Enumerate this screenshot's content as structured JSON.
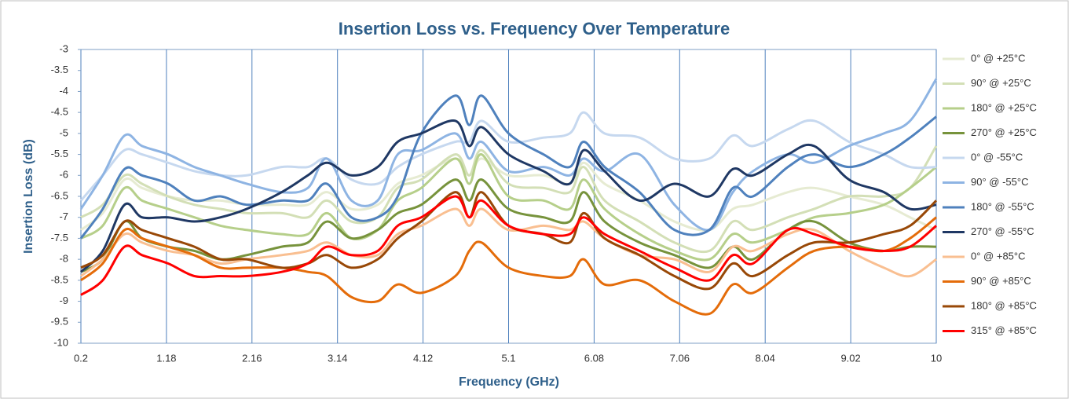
{
  "chart_data": {
    "type": "line",
    "title": "Insertion Loss vs. Frequency Over Temperature",
    "x_label": "Frequency (GHz)",
    "y_label": "Insertion Loss (dB)",
    "x": [
      0.2,
      0.45,
      0.7,
      0.9,
      1.2,
      1.5,
      1.8,
      2.1,
      2.5,
      2.8,
      3.02,
      3.3,
      3.6,
      3.83,
      4.1,
      4.49,
      4.65,
      4.79,
      5.1,
      5.5,
      5.8,
      5.96,
      6.2,
      6.6,
      7.0,
      7.4,
      7.67,
      7.9,
      8.3,
      8.6,
      9.0,
      9.4,
      9.7,
      10
    ],
    "xlim": [
      0.2,
      10
    ],
    "xticks": [
      0.2,
      1.18,
      2.16,
      3.14,
      4.12,
      5.1,
      6.08,
      7.06,
      8.04,
      9.02,
      10
    ],
    "ylim": [
      -10,
      -3
    ],
    "yticks": [
      -3,
      -3.5,
      -4,
      -4.5,
      -5,
      -5.5,
      -6,
      -6.5,
      -7,
      -7.5,
      -8,
      -8.5,
      -9,
      -9.5,
      -10
    ],
    "grid": "x",
    "legend": "right",
    "series": [
      {
        "name": "0° @ +25°C",
        "color": "#e6ebd2",
        "values": [
          -7.3,
          -6.9,
          -6.1,
          -6.3,
          -6.5,
          -6.6,
          -6.6,
          -6.7,
          -6.7,
          -6.7,
          -6.4,
          -6.8,
          -6.7,
          -6.2,
          -6.0,
          -5.6,
          -6.0,
          -5.6,
          -6.0,
          -6.0,
          -6.2,
          -5.7,
          -6.2,
          -6.6,
          -7.1,
          -7.3,
          -6.8,
          -6.7,
          -6.4,
          -6.3,
          -6.5,
          -6.7,
          -7.0,
          -7.3
        ]
      },
      {
        "name": "90° @ +25°C",
        "color": "#d3dfb6",
        "values": [
          -7.0,
          -6.7,
          -6.0,
          -6.2,
          -6.5,
          -6.7,
          -6.8,
          -6.9,
          -6.9,
          -7.0,
          -6.6,
          -7.1,
          -7.0,
          -6.3,
          -6.1,
          -5.5,
          -6.0,
          -5.4,
          -6.2,
          -6.3,
          -6.4,
          -5.8,
          -6.6,
          -7.1,
          -7.6,
          -7.8,
          -7.1,
          -7.3,
          -7.0,
          -6.8,
          -6.5,
          -6.5,
          -6.3,
          -5.3
        ]
      },
      {
        "name": "180° @ +25°C",
        "color": "#b6cf8a",
        "values": [
          -7.5,
          -7.2,
          -6.3,
          -6.6,
          -6.8,
          -7.0,
          -7.2,
          -7.3,
          -7.4,
          -7.4,
          -6.9,
          -7.5,
          -7.3,
          -6.6,
          -6.3,
          -5.6,
          -6.2,
          -5.5,
          -6.5,
          -6.6,
          -6.8,
          -6.1,
          -6.8,
          -7.4,
          -7.8,
          -8.0,
          -7.4,
          -7.6,
          -7.3,
          -7.0,
          -6.9,
          -6.7,
          -6.3,
          -5.8
        ]
      },
      {
        "name": "270° @ +25°C",
        "color": "#77933c",
        "values": [
          -8.3,
          -8.0,
          -7.1,
          -7.5,
          -7.7,
          -7.8,
          -8.0,
          -7.9,
          -7.7,
          -7.6,
          -7.1,
          -7.5,
          -7.3,
          -6.9,
          -6.7,
          -6.1,
          -6.6,
          -6.1,
          -6.8,
          -7.0,
          -7.1,
          -6.4,
          -7.1,
          -7.6,
          -7.9,
          -8.2,
          -7.7,
          -8.0,
          -7.3,
          -7.1,
          -7.6,
          -7.8,
          -7.7,
          -7.7
        ]
      },
      {
        "name": "0° @  -55°C",
        "color": "#c6d8ef",
        "values": [
          -6.6,
          -6.0,
          -5.4,
          -5.5,
          -5.7,
          -5.9,
          -6.0,
          -6.0,
          -5.8,
          -5.8,
          -5.6,
          -6.1,
          -6.2,
          -5.8,
          -5.5,
          -5.2,
          -5.2,
          -4.7,
          -5.2,
          -5.1,
          -5.0,
          -4.5,
          -5.0,
          -5.1,
          -5.6,
          -5.6,
          -5.05,
          -5.3,
          -4.9,
          -4.7,
          -5.2,
          -5.5,
          -5.8,
          -5.8
        ]
      },
      {
        "name": "90° @  -55°C",
        "color": "#8eb4e3",
        "values": [
          -6.8,
          -6.0,
          -5.05,
          -5.3,
          -5.5,
          -5.8,
          -6.0,
          -6.2,
          -6.4,
          -6.3,
          -5.6,
          -6.6,
          -6.6,
          -5.5,
          -5.4,
          -5.0,
          -5.6,
          -5.2,
          -5.9,
          -5.8,
          -6.0,
          -5.6,
          -5.9,
          -5.5,
          -6.7,
          -7.3,
          -6.4,
          -5.9,
          -5.5,
          -5.7,
          -5.3,
          -5.0,
          -4.7,
          -3.7
        ]
      },
      {
        "name": "180° @  -55°C",
        "color": "#4f81bd",
        "values": [
          -7.5,
          -6.8,
          -5.85,
          -6.0,
          -6.2,
          -6.6,
          -6.5,
          -6.7,
          -6.6,
          -6.6,
          -6.2,
          -7.0,
          -7.0,
          -6.5,
          -5.0,
          -4.1,
          -4.8,
          -4.1,
          -5.0,
          -5.5,
          -5.8,
          -5.2,
          -5.8,
          -6.4,
          -7.3,
          -7.3,
          -6.3,
          -6.5,
          -5.8,
          -5.5,
          -5.8,
          -5.5,
          -5.1,
          -4.6
        ]
      },
      {
        "name": "270° @  -55°C",
        "color": "#1f3864",
        "values": [
          -8.3,
          -7.8,
          -6.7,
          -7.0,
          -7.0,
          -7.1,
          -7.0,
          -6.8,
          -6.4,
          -6.0,
          -5.7,
          -6.0,
          -5.8,
          -5.2,
          -5.0,
          -4.7,
          -5.3,
          -4.85,
          -5.5,
          -5.9,
          -6.2,
          -5.4,
          -5.9,
          -6.6,
          -6.2,
          -6.5,
          -5.85,
          -6.0,
          -5.5,
          -5.3,
          -6.1,
          -6.4,
          -6.8,
          -6.7
        ]
      },
      {
        "name": "0° @ +85°C",
        "color": "#f9bf91",
        "values": [
          -8.4,
          -8.0,
          -7.4,
          -7.6,
          -7.8,
          -7.9,
          -8.1,
          -8.0,
          -7.9,
          -7.8,
          -7.6,
          -7.9,
          -7.9,
          -7.4,
          -7.2,
          -6.8,
          -7.2,
          -6.8,
          -7.3,
          -7.2,
          -7.3,
          -7.1,
          -7.5,
          -7.9,
          -8.0,
          -8.3,
          -7.7,
          -7.8,
          -7.4,
          -7.3,
          -7.8,
          -8.2,
          -8.4,
          -8.0
        ]
      },
      {
        "name": "90° @ +85°C",
        "color": "#e46c0a",
        "values": [
          -8.5,
          -8.1,
          -7.3,
          -7.5,
          -7.7,
          -7.9,
          -8.2,
          -8.2,
          -8.2,
          -8.3,
          -8.4,
          -8.9,
          -9.0,
          -8.6,
          -8.8,
          -8.4,
          -7.8,
          -7.6,
          -8.2,
          -8.4,
          -8.4,
          -8.0,
          -8.6,
          -8.5,
          -9.0,
          -9.3,
          -8.6,
          -8.8,
          -8.2,
          -7.8,
          -7.7,
          -7.8,
          -7.5,
          -7.0
        ]
      },
      {
        "name": "180° @ +85°C",
        "color": "#984807",
        "values": [
          -8.2,
          -7.9,
          -7.1,
          -7.3,
          -7.5,
          -7.7,
          -8.0,
          -8.0,
          -8.2,
          -8.1,
          -7.9,
          -8.2,
          -8.0,
          -7.5,
          -7.1,
          -6.4,
          -7.0,
          -6.4,
          -7.2,
          -7.4,
          -7.6,
          -6.9,
          -7.5,
          -7.9,
          -8.4,
          -8.7,
          -8.1,
          -8.4,
          -7.9,
          -7.6,
          -7.6,
          -7.4,
          -7.2,
          -6.6
        ]
      },
      {
        "name": "315° @ +85°C",
        "color": "#ff0000",
        "values": [
          -8.85,
          -8.5,
          -7.7,
          -7.9,
          -8.1,
          -8.4,
          -8.4,
          -8.4,
          -8.3,
          -8.1,
          -7.7,
          -7.9,
          -7.8,
          -7.2,
          -7.0,
          -6.5,
          -7.0,
          -6.6,
          -7.2,
          -7.4,
          -7.4,
          -7.0,
          -7.4,
          -7.8,
          -8.2,
          -8.5,
          -7.9,
          -8.1,
          -7.3,
          -7.4,
          -7.7,
          -7.8,
          -7.7,
          -7.2
        ]
      }
    ]
  }
}
